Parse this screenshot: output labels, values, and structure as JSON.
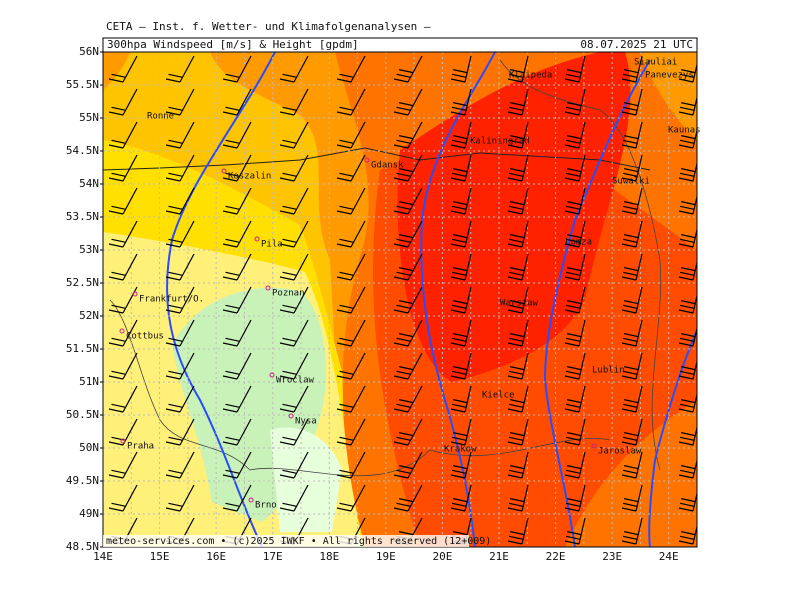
{
  "header": {
    "title": "CETA — Inst. f. Wetter- und Klimafolgenanalysen —",
    "product": "300hpa Windspeed [m/s] & Height [gpdm]",
    "valid": "08.07.2025 21 UTC"
  },
  "map": {
    "lat_labels": [
      "56N",
      "55.5N",
      "55N",
      "54.5N",
      "54N",
      "53.5N",
      "53N",
      "52.5N",
      "52N",
      "51.5N",
      "51N",
      "50.5N",
      "50N",
      "49.5N",
      "49N",
      "48.5N"
    ],
    "lon_labels": [
      "14E",
      "15E",
      "16E",
      "17E",
      "18E",
      "19E",
      "20E",
      "21E",
      "22E",
      "23E",
      "24E"
    ],
    "cities": [
      "Ronne",
      "Koszalin",
      "Gdansk",
      "Kaliningrad",
      "Klaipeda",
      "Siauliai",
      "Panevezys",
      "Kaunas",
      "Suwalki",
      "Pila",
      "Lomza",
      "Poznan",
      "Frankfurt/O.",
      "Warszaw",
      "Cottbus",
      "Lublin",
      "Wroclaw",
      "Kielce",
      "Nysa",
      "Praha",
      "Krakow",
      "Jaroslaw",
      "Brno"
    ]
  },
  "footer": "meteo-services.com • (c)2025 IWKF • All rights reserved (12+009)"
}
